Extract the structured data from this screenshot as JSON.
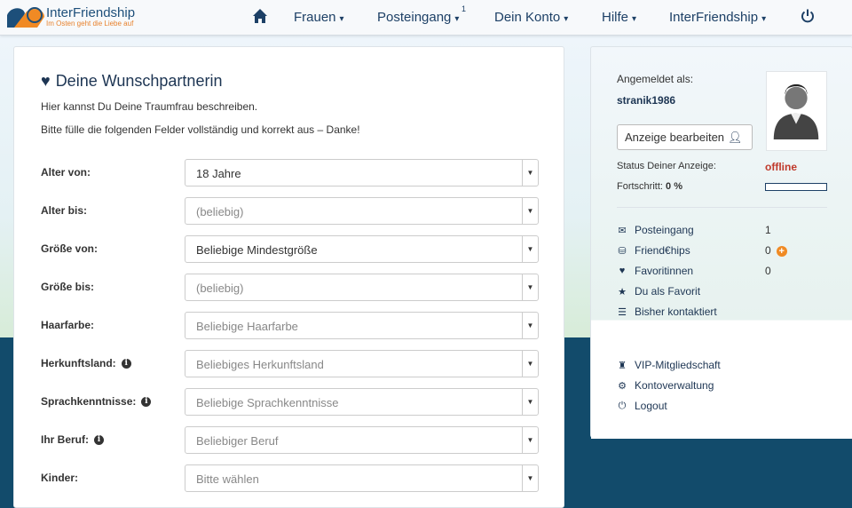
{
  "brand": {
    "name": "InterFriendship",
    "tagline": "Im Osten geht die Liebe auf"
  },
  "nav": {
    "items": [
      {
        "label": "Frauen"
      },
      {
        "label": "Posteingang",
        "badge": "1"
      },
      {
        "label": "Dein Konto"
      },
      {
        "label": "Hilfe"
      },
      {
        "label": "InterFriendship"
      }
    ],
    "icons": [
      "home-icon",
      "power-icon"
    ]
  },
  "main": {
    "title": "Deine Wunschpartnerin",
    "intro1": "Hier kannst Du Deine Traumfrau beschreiben.",
    "intro2": "Bitte fülle die folgenden Felder vollständig und korrekt aus – Danke!",
    "fields": [
      {
        "label": "Alter von:",
        "value": "18 Jahre",
        "placeholder": false,
        "info": false
      },
      {
        "label": "Alter bis:",
        "value": "(beliebig)",
        "placeholder": true,
        "info": false
      },
      {
        "label": "Größe von:",
        "value": "Beliebige Mindestgröße",
        "placeholder": false,
        "info": false
      },
      {
        "label": "Größe bis:",
        "value": "(beliebig)",
        "placeholder": true,
        "info": false
      },
      {
        "label": "Haarfarbe:",
        "value": "Beliebige Haarfarbe",
        "placeholder": true,
        "info": false
      },
      {
        "label": "Herkunftsland:",
        "value": "Beliebiges Herkunftsland",
        "placeholder": true,
        "info": true
      },
      {
        "label": "Sprachkenntnisse:",
        "value": "Beliebige Sprachkenntnisse",
        "placeholder": true,
        "info": true
      },
      {
        "label": "Ihr Beruf:",
        "value": "Beliebiger Beruf",
        "placeholder": true,
        "info": true
      },
      {
        "label": "Kinder:",
        "value": "Bitte wählen",
        "placeholder": true,
        "info": false
      }
    ]
  },
  "sidebar": {
    "logged_in_label": "Angemeldet als:",
    "username": "stranik1986",
    "edit_button": "Anzeige bearbeiten",
    "status_label": "Status Deiner Anzeige:",
    "status_value": "offline",
    "status_color": "#c0392b",
    "progress_label": "Fortschritt:",
    "progress_value": "0 %",
    "progress_fraction": 0,
    "stats": [
      {
        "icon": "envelope-icon",
        "label": "Posteingang",
        "count": "1"
      },
      {
        "icon": "coins-icon",
        "label": "Friend€hips",
        "count": "0",
        "plus": true
      },
      {
        "icon": "heart-icon",
        "label": "Favoritinnen",
        "count": "0"
      },
      {
        "icon": "star-icon",
        "label": "Du als Favorit"
      },
      {
        "icon": "list-icon",
        "label": "Bisher kontaktiert"
      }
    ],
    "links": [
      {
        "icon": "vip-icon",
        "label": "VIP-Mitgliedschaft"
      },
      {
        "icon": "gear-icon",
        "label": "Kontoverwaltung"
      },
      {
        "icon": "power-icon",
        "label": "Logout"
      }
    ]
  }
}
